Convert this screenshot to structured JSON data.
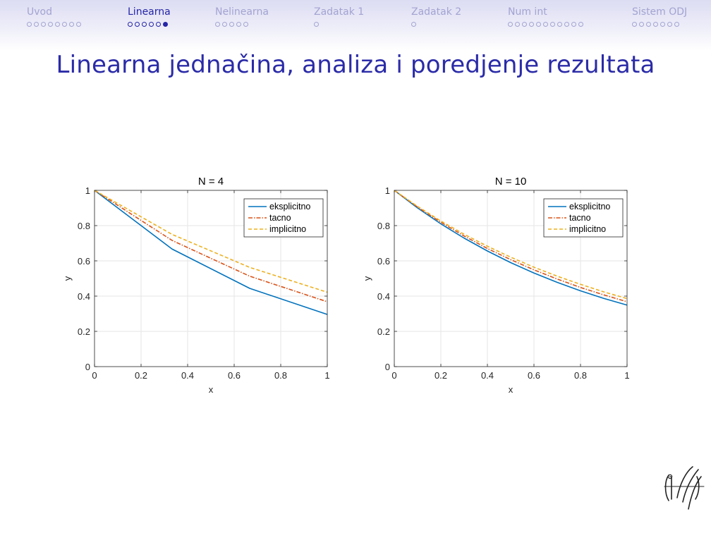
{
  "nav": {
    "sections": [
      {
        "label": "Uvod",
        "dots": 8,
        "active": false,
        "current": -1
      },
      {
        "label": "Linearna",
        "dots": 6,
        "active": true,
        "current": 5
      },
      {
        "label": "Nelinearna",
        "dots": 5,
        "active": false,
        "current": -1
      },
      {
        "label": "Zadatak 1",
        "dots": 1,
        "active": false,
        "current": -1
      },
      {
        "label": "Zadatak 2",
        "dots": 1,
        "active": false,
        "current": -1
      },
      {
        "label": "Num int",
        "dots": 11,
        "active": false,
        "current": -1
      },
      {
        "label": "Sistem ODJ",
        "dots": 7,
        "active": false,
        "current": -1
      }
    ]
  },
  "frame": {
    "title": "Linearna jednačina, analiza i poredjenje rezultata"
  },
  "colors": {
    "eksplicitno": "#0072BD",
    "tacno": "#D95319",
    "implicitno": "#EDB120",
    "nav_active": "#2525a8",
    "nav_inactive": "#a3a3d2",
    "title": "#2b2ba8"
  },
  "chart_data": [
    {
      "type": "line",
      "title": "N = 4",
      "xlabel": "x",
      "ylabel": "y",
      "xlim": [
        0,
        1
      ],
      "ylim": [
        0,
        1
      ],
      "xticks": [
        "0",
        "0.2",
        "0.4",
        "0.6",
        "0.8",
        "1"
      ],
      "yticks": [
        "0",
        "0.2",
        "0.4",
        "0.6",
        "0.8",
        "1"
      ],
      "grid": true,
      "legend_position": "top-right",
      "series": [
        {
          "name": "eksplicitno",
          "style": "solid",
          "color": "#0072BD",
          "x": [
            0,
            0.3333,
            0.6667,
            1
          ],
          "y": [
            1,
            0.667,
            0.444,
            0.296
          ]
        },
        {
          "name": "tacno",
          "style": "dashdot",
          "color": "#D95319",
          "x": [
            0,
            0.3333,
            0.6667,
            1
          ],
          "y": [
            1,
            0.716,
            0.513,
            0.368
          ]
        },
        {
          "name": "implicitno",
          "style": "dashed",
          "color": "#EDB120",
          "x": [
            0,
            0.3333,
            0.6667,
            1
          ],
          "y": [
            1,
            0.75,
            0.563,
            0.422
          ]
        }
      ]
    },
    {
      "type": "line",
      "title": "N = 10",
      "xlabel": "x",
      "ylabel": "y",
      "xlim": [
        0,
        1
      ],
      "ylim": [
        0,
        1
      ],
      "xticks": [
        "0",
        "0.2",
        "0.4",
        "0.6",
        "0.8",
        "1"
      ],
      "yticks": [
        "0",
        "0.2",
        "0.4",
        "0.6",
        "0.8",
        "1"
      ],
      "grid": true,
      "legend_position": "top-right",
      "series": [
        {
          "name": "eksplicitno",
          "style": "solid",
          "color": "#0072BD",
          "x": [
            0,
            0.1,
            0.2,
            0.3,
            0.4,
            0.5,
            0.6,
            0.7,
            0.8,
            0.9,
            1
          ],
          "y": [
            1,
            0.9,
            0.81,
            0.729,
            0.656,
            0.59,
            0.531,
            0.478,
            0.43,
            0.387,
            0.349
          ]
        },
        {
          "name": "tacno",
          "style": "dashdot",
          "color": "#D95319",
          "x": [
            0,
            0.1,
            0.2,
            0.3,
            0.4,
            0.5,
            0.6,
            0.7,
            0.8,
            0.9,
            1
          ],
          "y": [
            1,
            0.905,
            0.819,
            0.741,
            0.67,
            0.607,
            0.549,
            0.497,
            0.449,
            0.407,
            0.368
          ]
        },
        {
          "name": "implicitno",
          "style": "dashed",
          "color": "#EDB120",
          "x": [
            0,
            0.1,
            0.2,
            0.3,
            0.4,
            0.5,
            0.6,
            0.7,
            0.8,
            0.9,
            1
          ],
          "y": [
            1,
            0.909,
            0.826,
            0.751,
            0.683,
            0.621,
            0.564,
            0.513,
            0.467,
            0.424,
            0.386
          ]
        }
      ]
    }
  ]
}
